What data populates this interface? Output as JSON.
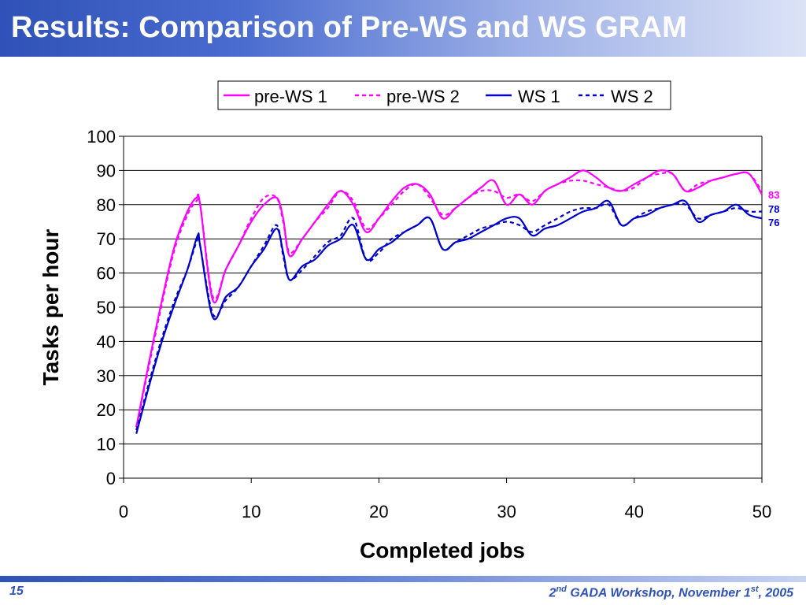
{
  "slide": {
    "title": "Results: Comparison of Pre-WS and WS GRAM",
    "page_number": "15",
    "footer": {
      "ordinal": "2",
      "ordinal_suffix": "nd",
      "event": " GADA Workshop, November 1",
      "day_suffix": "st",
      "year": ", 2005"
    }
  },
  "colors": {
    "pre_ws": "#ff00ff",
    "ws": "#0000cc",
    "brand": "#2f52b8"
  },
  "chart_data": {
    "type": "line",
    "title": "",
    "xlabel": "Completed jobs",
    "ylabel": "Tasks per hour",
    "xlim": [
      0,
      50
    ],
    "ylim": [
      0,
      100
    ],
    "xticks": [
      0,
      10,
      20,
      30,
      40,
      50
    ],
    "yticks": [
      0,
      10,
      20,
      30,
      40,
      50,
      60,
      70,
      80,
      90,
      100
    ],
    "grid": "horizontal",
    "legend_position": "top",
    "end_labels": [
      "83",
      "78",
      "76"
    ],
    "series": [
      {
        "name": "pre-WS 1",
        "color": "#ff00ff",
        "dash": "solid",
        "x": [
          1,
          2,
          3,
          4,
          5,
          5.7,
          6,
          7,
          8,
          9,
          10,
          11,
          12,
          12.5,
          13,
          14,
          15,
          16,
          17,
          18,
          19,
          20,
          21,
          22,
          23,
          24,
          25,
          26,
          27,
          28,
          29,
          30,
          31,
          32,
          33,
          34,
          35,
          36,
          37,
          38,
          39,
          40,
          41,
          42,
          43,
          44,
          45,
          46,
          47,
          48,
          49,
          50
        ],
        "y": [
          15,
          34,
          52,
          68,
          78,
          82,
          80,
          52,
          61,
          68,
          75,
          80,
          82,
          76,
          65,
          70,
          75,
          80,
          84,
          80,
          72,
          76,
          81,
          85,
          86,
          83,
          76,
          79,
          82,
          85,
          87,
          80,
          83,
          80,
          84,
          86,
          88,
          90,
          88,
          85,
          84,
          86,
          88,
          90,
          89,
          84,
          85,
          87,
          88,
          89,
          89,
          83
        ]
      },
      {
        "name": "pre-WS 2",
        "color": "#ff00ff",
        "dash": "dashed",
        "x": [
          1,
          2,
          3,
          4,
          5,
          5.7,
          6,
          7,
          8,
          9,
          10,
          11,
          12,
          12.5,
          13,
          14,
          15,
          16,
          17,
          18,
          19,
          20,
          21,
          22,
          23,
          24,
          25,
          26,
          27,
          28,
          29,
          30,
          31,
          32,
          33,
          34,
          35,
          36,
          37,
          38,
          39,
          40,
          41,
          42,
          43,
          44,
          45,
          46,
          47,
          48,
          49,
          50
        ],
        "y": [
          15,
          33,
          51,
          67,
          77,
          81,
          80,
          53,
          61,
          68,
          76,
          82,
          82,
          75,
          66,
          70,
          75,
          79,
          84,
          81,
          73,
          76,
          80,
          84,
          86,
          82,
          77,
          79,
          82,
          84,
          84,
          82,
          83,
          81,
          84,
          86,
          87,
          87,
          86,
          85,
          84,
          85,
          88,
          89,
          89,
          84,
          86,
          87,
          88,
          89,
          89,
          84
        ]
      },
      {
        "name": "WS 1",
        "color": "#0000cc",
        "dash": "solid",
        "x": [
          1,
          2,
          3,
          4,
          5,
          5.8,
          6,
          7,
          8,
          9,
          10,
          11,
          12,
          12.5,
          13,
          14,
          15,
          16,
          17,
          18,
          19,
          20,
          21,
          22,
          23,
          24,
          25,
          26,
          27,
          28,
          29,
          30,
          31,
          32,
          33,
          34,
          35,
          36,
          37,
          38,
          39,
          40,
          41,
          42,
          43,
          44,
          45,
          46,
          47,
          48,
          49,
          50
        ],
        "y": [
          13,
          27,
          40,
          51,
          61,
          71,
          68,
          47,
          53,
          56,
          62,
          67,
          73,
          66,
          58,
          62,
          64,
          68,
          70,
          74,
          64,
          67,
          69,
          72,
          74,
          76,
          67,
          69,
          70,
          72,
          74,
          76,
          76,
          71,
          73,
          74,
          76,
          78,
          79,
          81,
          74,
          76,
          77,
          79,
          80,
          81,
          75,
          77,
          78,
          80,
          77,
          76
        ]
      },
      {
        "name": "WS 2",
        "color": "#0000cc",
        "dash": "dashed",
        "x": [
          1,
          2,
          3,
          4,
          5,
          5.8,
          6,
          7,
          8,
          9,
          10,
          11,
          12,
          12.5,
          13,
          14,
          15,
          16,
          17,
          18,
          19,
          20,
          21,
          22,
          23,
          24,
          25,
          26,
          27,
          28,
          29,
          30,
          31,
          32,
          33,
          34,
          35,
          36,
          37,
          38,
          39,
          40,
          41,
          42,
          43,
          44,
          45,
          46,
          47,
          48,
          49,
          50
        ],
        "y": [
          14,
          28,
          41,
          52,
          61,
          70,
          68,
          48,
          52,
          56,
          62,
          68,
          74,
          65,
          58,
          61,
          65,
          69,
          71,
          76,
          64,
          66,
          70,
          72,
          74,
          76,
          67,
          69,
          71,
          73,
          74,
          75,
          74,
          72,
          74,
          76,
          78,
          79,
          79,
          80,
          74,
          76,
          78,
          79,
          80,
          80,
          76,
          77,
          78,
          79,
          78,
          78
        ]
      }
    ]
  }
}
